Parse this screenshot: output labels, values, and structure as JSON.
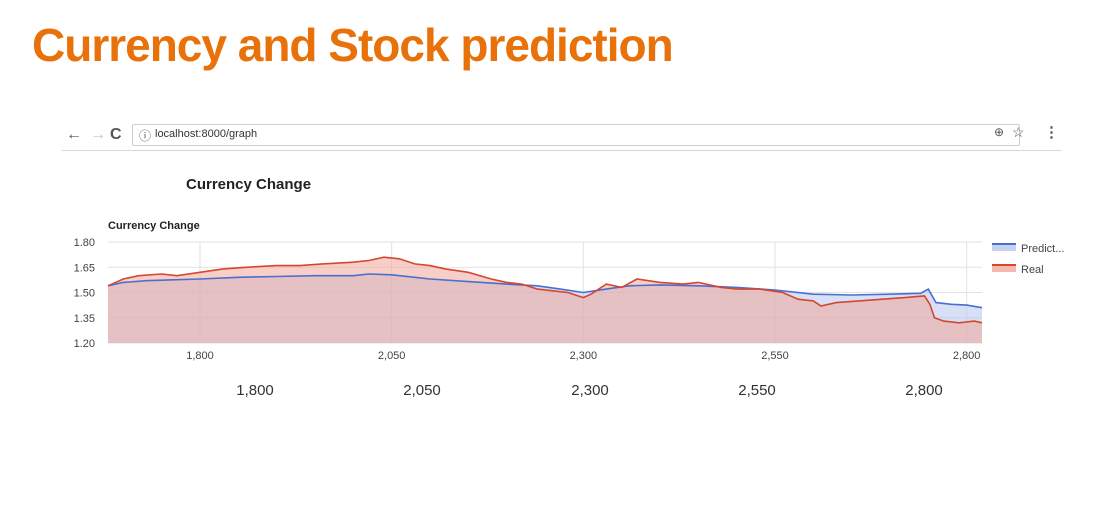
{
  "slide": {
    "title": "Currency and Stock prediction"
  },
  "browser": {
    "url": "localhost:8000/graph",
    "back_icon": "arrow-left-icon",
    "forward_icon": "arrow-right-icon",
    "reload_icon": "reload-icon"
  },
  "outer_chart": {
    "title": "Currency Change",
    "x_ticks": [
      "1,800",
      "2,050",
      "2,300",
      "2,550",
      "2,800"
    ]
  },
  "chart_data": {
    "type": "area",
    "title": "Currency Change",
    "xlabel": "",
    "ylabel": "",
    "x_range": [
      1680,
      2820
    ],
    "ylim": [
      1.2,
      1.8
    ],
    "y_ticks": [
      1.2,
      1.35,
      1.5,
      1.65,
      1.8
    ],
    "y_tick_labels": [
      "1.20",
      "1.35",
      "1.50",
      "1.65",
      "1.80"
    ],
    "x_ticks": [
      1800,
      2050,
      2300,
      2550,
      2800
    ],
    "x_tick_labels": [
      "1,800",
      "2,050",
      "2,300",
      "2,550",
      "2,800"
    ],
    "grid": true,
    "legend": "right",
    "series": [
      {
        "name": "Predict...",
        "color": "#4a6fd0",
        "fill": "#b7c7ef",
        "points": [
          [
            1680,
            1.54
          ],
          [
            1700,
            1.56
          ],
          [
            1730,
            1.57
          ],
          [
            1760,
            1.575
          ],
          [
            1800,
            1.58
          ],
          [
            1850,
            1.59
          ],
          [
            1900,
            1.595
          ],
          [
            1950,
            1.6
          ],
          [
            2000,
            1.6
          ],
          [
            2020,
            1.61
          ],
          [
            2050,
            1.605
          ],
          [
            2080,
            1.59
          ],
          [
            2100,
            1.58
          ],
          [
            2150,
            1.565
          ],
          [
            2200,
            1.55
          ],
          [
            2240,
            1.54
          ],
          [
            2270,
            1.52
          ],
          [
            2300,
            1.5
          ],
          [
            2330,
            1.52
          ],
          [
            2360,
            1.54
          ],
          [
            2400,
            1.545
          ],
          [
            2450,
            1.54
          ],
          [
            2500,
            1.53
          ],
          [
            2550,
            1.515
          ],
          [
            2600,
            1.49
          ],
          [
            2650,
            1.485
          ],
          [
            2700,
            1.49
          ],
          [
            2740,
            1.495
          ],
          [
            2750,
            1.52
          ],
          [
            2760,
            1.44
          ],
          [
            2780,
            1.43
          ],
          [
            2800,
            1.425
          ],
          [
            2820,
            1.41
          ]
        ]
      },
      {
        "name": "Real",
        "color": "#d6462f",
        "fill": "#f0a89b",
        "points": [
          [
            1680,
            1.54
          ],
          [
            1700,
            1.58
          ],
          [
            1720,
            1.6
          ],
          [
            1750,
            1.61
          ],
          [
            1770,
            1.6
          ],
          [
            1800,
            1.62
          ],
          [
            1830,
            1.64
          ],
          [
            1860,
            1.65
          ],
          [
            1900,
            1.66
          ],
          [
            1930,
            1.66
          ],
          [
            1960,
            1.67
          ],
          [
            2000,
            1.68
          ],
          [
            2020,
            1.69
          ],
          [
            2040,
            1.71
          ],
          [
            2060,
            1.7
          ],
          [
            2080,
            1.67
          ],
          [
            2100,
            1.66
          ],
          [
            2120,
            1.64
          ],
          [
            2150,
            1.62
          ],
          [
            2180,
            1.58
          ],
          [
            2200,
            1.56
          ],
          [
            2220,
            1.55
          ],
          [
            2240,
            1.52
          ],
          [
            2260,
            1.51
          ],
          [
            2280,
            1.5
          ],
          [
            2300,
            1.47
          ],
          [
            2310,
            1.49
          ],
          [
            2330,
            1.55
          ],
          [
            2350,
            1.53
          ],
          [
            2370,
            1.58
          ],
          [
            2400,
            1.56
          ],
          [
            2430,
            1.55
          ],
          [
            2450,
            1.56
          ],
          [
            2480,
            1.53
          ],
          [
            2500,
            1.52
          ],
          [
            2530,
            1.52
          ],
          [
            2560,
            1.5
          ],
          [
            2580,
            1.46
          ],
          [
            2600,
            1.45
          ],
          [
            2610,
            1.42
          ],
          [
            2630,
            1.44
          ],
          [
            2660,
            1.45
          ],
          [
            2690,
            1.46
          ],
          [
            2720,
            1.47
          ],
          [
            2745,
            1.48
          ],
          [
            2752,
            1.43
          ],
          [
            2758,
            1.35
          ],
          [
            2770,
            1.33
          ],
          [
            2790,
            1.32
          ],
          [
            2810,
            1.33
          ],
          [
            2820,
            1.32
          ]
        ]
      }
    ]
  }
}
